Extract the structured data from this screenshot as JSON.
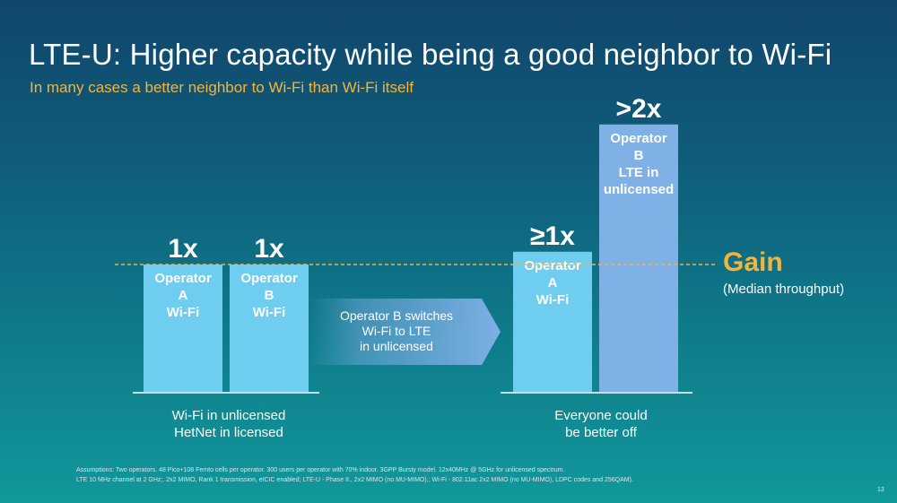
{
  "title": "LTE-U: Higher capacity while being a good neighbor to Wi-Fi",
  "subtitle": "In many cases a better neighbor to Wi-Fi than Wi-Fi itself",
  "chart_data": {
    "type": "bar",
    "baseline_value": 1,
    "bars": [
      {
        "lines": [
          "Operator",
          "A",
          "Wi-Fi"
        ],
        "value_label": "1x",
        "value": 1,
        "group": 0,
        "color": "#6fcdef"
      },
      {
        "lines": [
          "Operator",
          "B",
          "Wi-Fi"
        ],
        "value_label": "1x",
        "value": 1,
        "group": 0,
        "color": "#6fcdef"
      },
      {
        "lines": [
          "Operator",
          "A",
          "Wi-Fi"
        ],
        "value_label": "≥1x",
        "value": 1.1,
        "group": 1,
        "color": "#6fcdef"
      },
      {
        "lines": [
          "Operator",
          "B",
          "LTE in",
          "unlicensed"
        ],
        "value_label": ">2x",
        "value": 2.1,
        "group": 1,
        "color": "#7fb0e6"
      }
    ],
    "arrow": {
      "lines": [
        "Operator B switches",
        "Wi-Fi to LTE",
        "in unlicensed"
      ]
    },
    "reference_line": {
      "label": "Gain",
      "sublabel": "(Median throughput)",
      "color": "#f4b43c"
    },
    "group_captions": [
      [
        "Wi-Fi in unlicensed",
        "HetNet in licensed"
      ],
      [
        "Everyone could",
        "be better off"
      ]
    ]
  },
  "footnote": [
    "Assumptions: Two operators. 48 Pico+108 Femto cells per operator. 300 users per operator with 70% indoor. 3GPP Bursty model. 12x40MHz @ 5GHz for unlicensed spectrum.",
    "LTE 10 MHz channel at 2 GHz;. 2x2 MIMO, Rank 1 transmission, eICIC enabled; LTE-U - Phase II., 2x2 MIMO (no MU-MIMO).; Wi-Fi -  802.11ac 2x2 MIMO (no MU-MIMO), LDPC codes and 256QAM)."
  ],
  "slide_number": "13"
}
